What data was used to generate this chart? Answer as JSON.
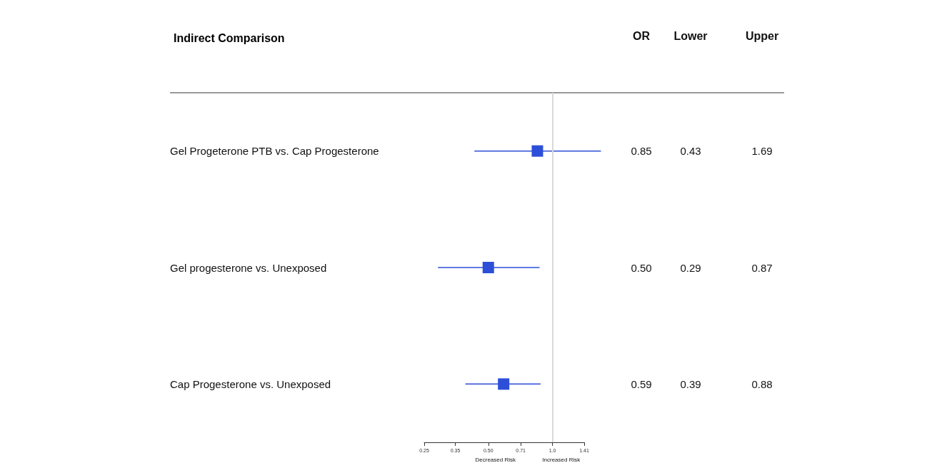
{
  "chart_data": {
    "type": "scatter",
    "orientation": "horizontal",
    "title": "Indirect Comparison",
    "categories": [
      "Gel Progeterone PTB vs. Cap Progesterone",
      "Gel progesterone vs. Unexposed",
      "Cap Progesterone vs. Unexposed"
    ],
    "values": [
      0.85,
      0.5,
      0.59
    ],
    "value_labels": [
      "0.85",
      "0.50",
      "0.59"
    ],
    "errors": [
      [
        0.43,
        1.69
      ],
      [
        0.29,
        0.87
      ],
      [
        0.39,
        0.88
      ]
    ],
    "color": "#2d4fd8",
    "marker": "square",
    "log": "x",
    "xlim": [
      0.25,
      1.41
    ],
    "xticks": [
      0.25,
      0.35,
      {
        "value": 0.5,
        "label": "0.50"
      },
      0.71,
      {
        "value": 1,
        "label": "1.0"
      },
      1.41
    ],
    "ref_lines": [
      {
        "axis": "x",
        "value": 1,
        "color": "#d9d9d9"
      }
    ],
    "annotations": [
      "OR",
      "Lower",
      "Upper",
      "Decreased Risk",
      "Increased Risk",
      "0.43",
      "1.69",
      "0.29",
      "0.87",
      "0.39",
      "0.88"
    ],
    "data_labels": true,
    "grid": false
  }
}
